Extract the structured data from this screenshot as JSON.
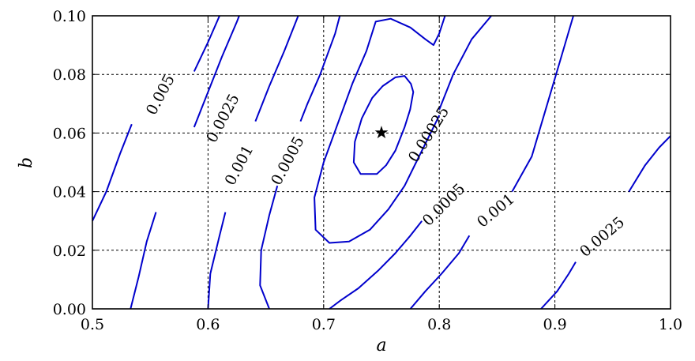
{
  "chart_data": {
    "type": "contour",
    "xlabel": "a",
    "ylabel": "b",
    "xlim": [
      0.5,
      1.0
    ],
    "ylim": [
      0.0,
      0.1
    ],
    "xticks": [
      "0.5",
      "0.6",
      "0.7",
      "0.8",
      "0.9",
      "1.0"
    ],
    "yticks": [
      "0.00",
      "0.02",
      "0.04",
      "0.06",
      "0.08",
      "0.10"
    ],
    "grid": true,
    "marker": {
      "symbol": "★",
      "x": 0.75,
      "y": 0.06
    },
    "contours": [
      {
        "level": "0.00025",
        "closed": true,
        "points": [
          [
            0.7755,
            0.0768
          ],
          [
            0.7775,
            0.074
          ],
          [
            0.7748,
            0.068
          ],
          [
            0.77,
            0.062
          ],
          [
            0.762,
            0.054
          ],
          [
            0.754,
            0.049
          ],
          [
            0.746,
            0.046
          ],
          [
            0.732,
            0.046
          ],
          [
            0.726,
            0.05
          ],
          [
            0.727,
            0.057
          ],
          [
            0.733,
            0.065
          ],
          [
            0.742,
            0.072
          ],
          [
            0.751,
            0.076
          ],
          [
            0.762,
            0.079
          ],
          [
            0.77,
            0.0795
          ]
        ]
      },
      {
        "level": "0.0005",
        "closed": false,
        "points": [
          [
            0.8,
            0.066
          ],
          [
            0.79,
            0.058
          ],
          [
            0.78,
            0.05
          ],
          [
            0.77,
            0.042
          ],
          [
            0.756,
            0.034
          ],
          [
            0.74,
            0.027
          ],
          [
            0.722,
            0.023
          ],
          [
            0.705,
            0.0225
          ],
          [
            0.693,
            0.027
          ],
          [
            0.692,
            0.038
          ],
          [
            0.7,
            0.05
          ],
          [
            0.712,
            0.063
          ],
          [
            0.725,
            0.077
          ],
          [
            0.737,
            0.088
          ],
          [
            0.745,
            0.098
          ],
          [
            0.758,
            0.099
          ],
          [
            0.775,
            0.096
          ],
          [
            0.788,
            0.092
          ],
          [
            0.795,
            0.09
          ],
          [
            0.8,
            0.094
          ],
          [
            0.805,
            0.1
          ]
        ]
      },
      {
        "level": "0.0005",
        "closed": false,
        "points": [
          [
            0.705,
            0.0
          ],
          [
            0.715,
            0.003
          ],
          [
            0.73,
            0.007
          ],
          [
            0.747,
            0.013
          ],
          [
            0.762,
            0.019
          ],
          [
            0.775,
            0.025
          ],
          [
            0.785,
            0.03
          ]
        ]
      },
      {
        "level": "0.0005",
        "closed": false,
        "points": [
          [
            0.845,
            0.1
          ],
          [
            0.828,
            0.092
          ],
          [
            0.812,
            0.08
          ],
          [
            0.8,
            0.068
          ]
        ]
      },
      {
        "level": "0.0005",
        "closed": false,
        "points": [
          [
            0.653,
            0.0
          ],
          [
            0.645,
            0.008
          ],
          [
            0.646,
            0.02
          ],
          [
            0.653,
            0.032
          ],
          [
            0.66,
            0.042
          ]
        ]
      },
      {
        "level": "0.0005",
        "closed": false,
        "points": [
          [
            0.68,
            0.064
          ],
          [
            0.686,
            0.07
          ],
          [
            0.697,
            0.08
          ],
          [
            0.71,
            0.094
          ],
          [
            0.714,
            0.1
          ]
        ]
      },
      {
        "level": "0.001",
        "closed": false,
        "points": [
          [
            0.6,
            0.0
          ],
          [
            0.602,
            0.012
          ],
          [
            0.61,
            0.025
          ],
          [
            0.615,
            0.033
          ]
        ]
      },
      {
        "level": "0.001",
        "closed": false,
        "points": [
          [
            0.641,
            0.064
          ],
          [
            0.653,
            0.076
          ],
          [
            0.666,
            0.088
          ],
          [
            0.678,
            0.1
          ]
        ]
      },
      {
        "level": "0.001",
        "closed": false,
        "points": [
          [
            0.775,
            0.0
          ],
          [
            0.788,
            0.006
          ],
          [
            0.802,
            0.012
          ],
          [
            0.817,
            0.019
          ],
          [
            0.826,
            0.025
          ]
        ]
      },
      {
        "level": "0.001",
        "closed": false,
        "points": [
          [
            0.863,
            0.04
          ],
          [
            0.88,
            0.052
          ],
          [
            0.892,
            0.068
          ],
          [
            0.904,
            0.084
          ],
          [
            0.916,
            0.1
          ]
        ]
      },
      {
        "level": "0.0025",
        "closed": false,
        "points": [
          [
            0.533,
            0.0
          ],
          [
            0.54,
            0.011
          ],
          [
            0.547,
            0.023
          ],
          [
            0.555,
            0.033
          ]
        ]
      },
      {
        "level": "0.0025",
        "closed": false,
        "points": [
          [
            0.588,
            0.062
          ],
          [
            0.6,
            0.074
          ],
          [
            0.612,
            0.086
          ],
          [
            0.625,
            0.098
          ],
          [
            0.627,
            0.1
          ]
        ]
      },
      {
        "level": "0.0025",
        "closed": false,
        "points": [
          [
            0.888,
            0.0
          ],
          [
            0.902,
            0.006
          ],
          [
            0.912,
            0.012
          ],
          [
            0.918,
            0.016
          ]
        ]
      },
      {
        "level": "0.0025",
        "closed": false,
        "points": [
          [
            0.964,
            0.04
          ],
          [
            0.978,
            0.049
          ],
          [
            0.99,
            0.055
          ],
          [
            1.0,
            0.059
          ]
        ]
      },
      {
        "level": "0.005",
        "closed": false,
        "points": [
          [
            0.5,
            0.03
          ],
          [
            0.512,
            0.04
          ],
          [
            0.524,
            0.053
          ],
          [
            0.534,
            0.063
          ]
        ]
      },
      {
        "level": "0.005",
        "closed": false,
        "points": [
          [
            0.588,
            0.081
          ],
          [
            0.6,
            0.091
          ],
          [
            0.61,
            0.1
          ]
        ]
      }
    ],
    "contour_labels": [
      {
        "text": "0.005",
        "x": 0.559,
        "y": 0.073,
        "angle": -62
      },
      {
        "text": "0.0025",
        "x": 0.613,
        "y": 0.065,
        "angle": -62
      },
      {
        "text": "0.001",
        "x": 0.627,
        "y": 0.049,
        "angle": -62
      },
      {
        "text": "0.0005",
        "x": 0.669,
        "y": 0.0505,
        "angle": -62
      },
      {
        "text": "0.00025",
        "x": 0.791,
        "y": 0.0595,
        "angle": -58
      },
      {
        "text": "0.0005",
        "x": 0.804,
        "y": 0.0355,
        "angle": -45
      },
      {
        "text": "0.001",
        "x": 0.849,
        "y": 0.0335,
        "angle": -40
      },
      {
        "text": "0.0025",
        "x": 0.941,
        "y": 0.0245,
        "angle": -40
      }
    ]
  }
}
